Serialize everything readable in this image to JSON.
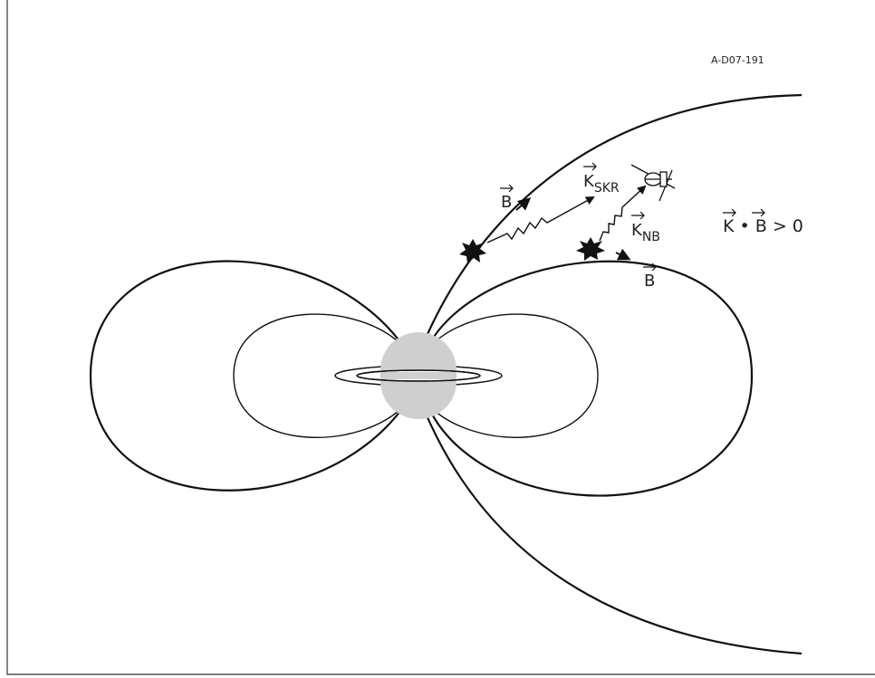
{
  "figure_id": "A-D07-191",
  "labels": {
    "b_open": {
      "base": "B"
    },
    "k_skr": {
      "base": "K",
      "sub": "SKR"
    },
    "k_nb": {
      "base": "K",
      "sub": "NB"
    },
    "b_closed": {
      "base": "B"
    }
  },
  "equation": {
    "parts": [
      "K",
      " • ",
      "B",
      " > 0"
    ]
  }
}
